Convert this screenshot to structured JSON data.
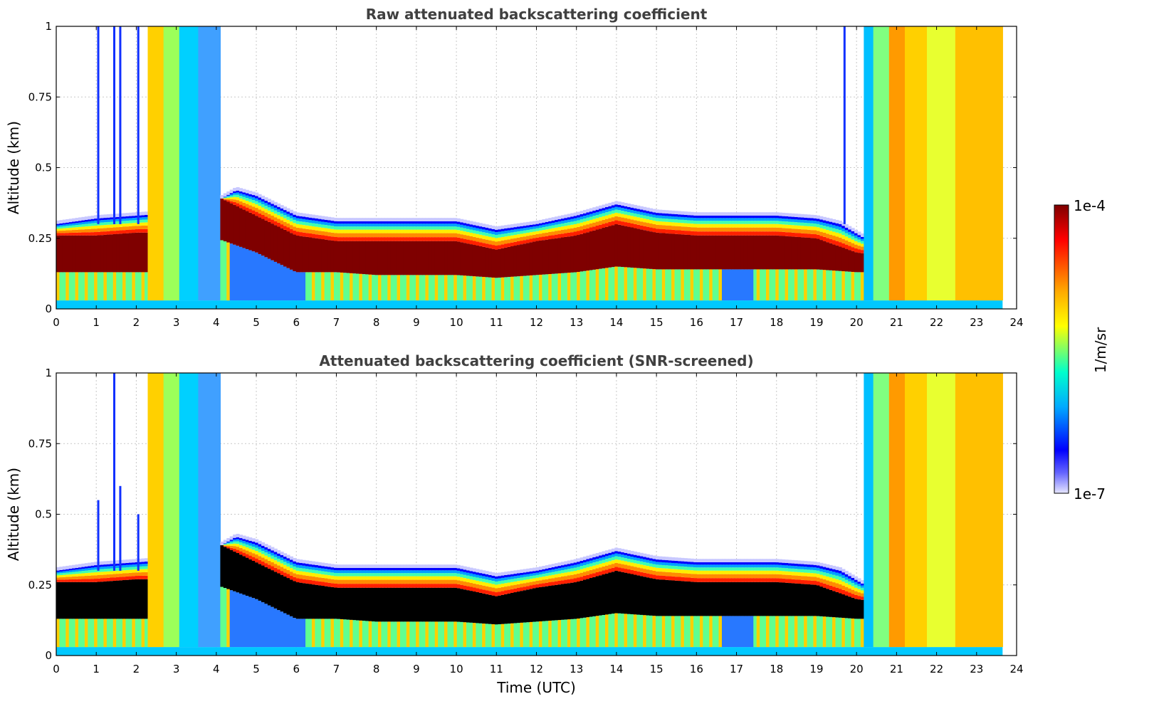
{
  "chart_data": [
    {
      "type": "heatmap",
      "title": "Raw attenuated backscattering coefficient",
      "xlabel": "",
      "ylabel": "Altitude (km)",
      "xlim": [
        0,
        24
      ],
      "ylim": [
        0,
        1
      ],
      "xticks": [
        "0",
        "1",
        "2",
        "3",
        "4",
        "5",
        "6",
        "7",
        "8",
        "9",
        "10",
        "11",
        "12",
        "13",
        "14",
        "15",
        "16",
        "17",
        "18",
        "19",
        "20",
        "21",
        "22",
        "23",
        "24"
      ],
      "yticks": [
        "0",
        "0.25",
        "0.5",
        "0.75",
        "1"
      ],
      "grid": true,
      "layer_top_km": {
        "time_utc": [
          0,
          1,
          2,
          3,
          4,
          4.5,
          5,
          6,
          7,
          8,
          9,
          10,
          11,
          12,
          13,
          14,
          15,
          16,
          17,
          18,
          19,
          19.6,
          20.2,
          21
        ],
        "altitude_km": [
          0.3,
          0.32,
          0.33,
          0.34,
          0.38,
          0.42,
          0.4,
          0.33,
          0.31,
          0.31,
          0.31,
          0.31,
          0.28,
          0.3,
          0.33,
          0.37,
          0.34,
          0.33,
          0.33,
          0.33,
          0.32,
          0.3,
          0.25,
          0.18
        ]
      },
      "dense_layer_km": {
        "time_utc": [
          0,
          1,
          2,
          3,
          4,
          5,
          6,
          7,
          8,
          9,
          10,
          11,
          12,
          13,
          14,
          15,
          16,
          17,
          18,
          19,
          20,
          21
        ],
        "bottom": [
          0.13,
          0.13,
          0.13,
          0.13,
          0.25,
          0.2,
          0.13,
          0.13,
          0.12,
          0.12,
          0.12,
          0.11,
          0.12,
          0.13,
          0.15,
          0.14,
          0.14,
          0.14,
          0.14,
          0.14,
          0.13,
          0.13
        ],
        "top": [
          0.26,
          0.26,
          0.27,
          0.27,
          0.4,
          0.33,
          0.26,
          0.24,
          0.24,
          0.24,
          0.24,
          0.21,
          0.24,
          0.26,
          0.3,
          0.27,
          0.26,
          0.26,
          0.26,
          0.25,
          0.2,
          0.18
        ]
      },
      "full_column_periods_utc": [
        [
          2.3,
          4.1
        ],
        [
          20.2,
          23.65
        ]
      ],
      "data_end_utc": 23.65
    },
    {
      "type": "heatmap",
      "title": "Attenuated backscattering coefficient (SNR-screened)",
      "xlabel": "Time (UTC)",
      "ylabel": "Altitude (km)",
      "xlim": [
        0,
        24
      ],
      "ylim": [
        0,
        1
      ],
      "xticks": [
        "0",
        "1",
        "2",
        "3",
        "4",
        "5",
        "6",
        "7",
        "8",
        "9",
        "10",
        "11",
        "12",
        "13",
        "14",
        "15",
        "16",
        "17",
        "18",
        "19",
        "20",
        "21",
        "22",
        "23",
        "24"
      ],
      "yticks": [
        "0",
        "0.25",
        "0.5",
        "0.75",
        "1"
      ],
      "grid": true,
      "screened_color": "#000000",
      "full_column_periods_utc": [
        [
          2.3,
          4.1
        ],
        [
          20.2,
          23.65
        ]
      ],
      "data_end_utc": 23.65
    }
  ],
  "colorbar": {
    "min_label": "1e-7",
    "max_label": "1e-4",
    "label": "1/m/sr",
    "colormap": "jet",
    "scale": "log"
  }
}
